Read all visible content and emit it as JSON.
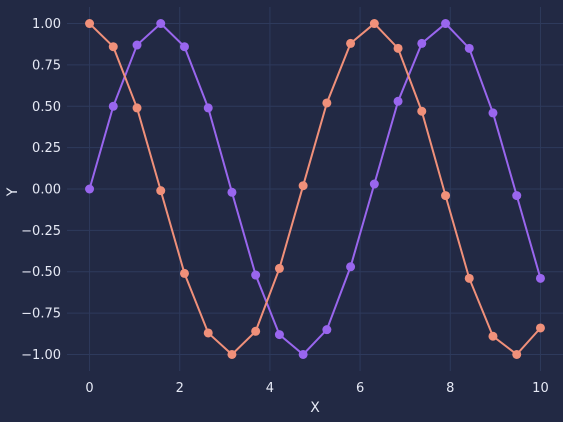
{
  "chart_data": {
    "type": "line",
    "xlabel": "X",
    "ylabel": "Y",
    "xlim": [
      -0.5,
      10.5
    ],
    "ylim": [
      -1.1,
      1.1
    ],
    "grid": true,
    "x_ticks": [
      0,
      2,
      4,
      6,
      8,
      10
    ],
    "y_ticks": [
      1.0,
      0.75,
      0.5,
      0.25,
      0.0,
      -0.25,
      -0.5,
      -0.75,
      -1.0
    ],
    "x_tick_labels": [
      "0",
      "2",
      "4",
      "6",
      "8",
      "10"
    ],
    "y_tick_labels": [
      "1.00",
      "0.75",
      "0.50",
      "0.25",
      "0.00",
      "−0.25",
      "−0.50",
      "−0.75",
      "−1.00"
    ],
    "x": [
      0,
      0.526,
      1.053,
      1.579,
      2.105,
      2.632,
      3.158,
      3.684,
      4.211,
      4.737,
      5.263,
      5.789,
      6.316,
      6.842,
      7.368,
      7.895,
      8.421,
      8.947,
      9.474,
      10.0
    ],
    "series": [
      {
        "color": "#9966ee",
        "values": [
          0.0,
          0.5,
          0.87,
          1.0,
          0.86,
          0.49,
          -0.02,
          -0.52,
          -0.88,
          -1.0,
          -0.85,
          -0.47,
          0.03,
          0.53,
          0.88,
          1.0,
          0.85,
          0.46,
          -0.04,
          -0.54
        ]
      },
      {
        "color": "#f0907a",
        "values": [
          1.0,
          0.86,
          0.49,
          -0.01,
          -0.51,
          -0.87,
          -1.0,
          -0.86,
          -0.48,
          0.02,
          0.52,
          0.88,
          1.0,
          0.85,
          0.47,
          -0.04,
          -0.54,
          -0.89,
          -1.0,
          -0.84
        ]
      }
    ]
  }
}
